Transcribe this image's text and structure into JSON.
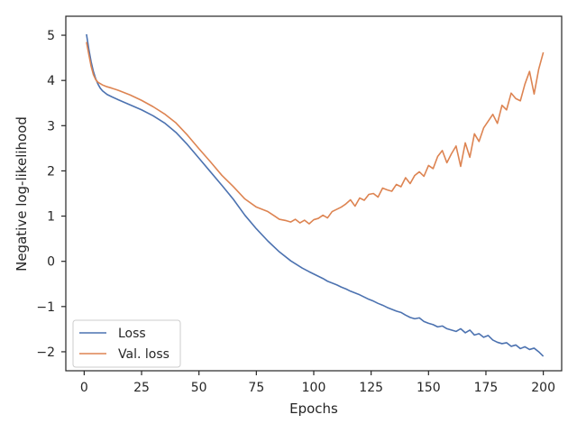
{
  "chart_data": {
    "type": "line",
    "xlabel": "Epochs",
    "ylabel": "Negative log-likelihood",
    "xlim": [
      -8,
      208
    ],
    "ylim": [
      -2.42,
      5.42
    ],
    "xticks": [
      0,
      25,
      50,
      75,
      100,
      125,
      150,
      175,
      200
    ],
    "yticks": [
      -2,
      -1,
      0,
      1,
      2,
      3,
      4,
      5
    ],
    "grid": false,
    "legend_position": "bottom-left",
    "series": [
      {
        "name": "Loss",
        "color": "#4c72b0",
        "x": [
          1,
          2,
          3,
          4,
          5,
          6,
          7,
          8,
          9,
          10,
          12,
          15,
          20,
          25,
          30,
          35,
          40,
          45,
          50,
          55,
          60,
          65,
          70,
          75,
          80,
          85,
          90,
          95,
          98,
          100,
          102,
          104,
          106,
          108,
          110,
          112,
          114,
          116,
          118,
          120,
          122,
          124,
          126,
          128,
          130,
          132,
          134,
          136,
          138,
          140,
          142,
          144,
          146,
          148,
          150,
          152,
          154,
          156,
          158,
          160,
          162,
          164,
          166,
          168,
          170,
          172,
          174,
          176,
          178,
          180,
          182,
          184,
          186,
          188,
          190,
          192,
          194,
          196,
          198,
          200
        ],
        "y": [
          5.02,
          4.7,
          4.42,
          4.2,
          4.04,
          3.92,
          3.83,
          3.77,
          3.73,
          3.69,
          3.64,
          3.57,
          3.46,
          3.35,
          3.22,
          3.06,
          2.85,
          2.58,
          2.28,
          1.98,
          1.68,
          1.37,
          1.02,
          0.72,
          0.45,
          0.21,
          0.01,
          -0.15,
          -0.23,
          -0.28,
          -0.33,
          -0.38,
          -0.44,
          -0.48,
          -0.52,
          -0.57,
          -0.61,
          -0.66,
          -0.7,
          -0.74,
          -0.79,
          -0.84,
          -0.88,
          -0.93,
          -0.97,
          -1.02,
          -1.06,
          -1.1,
          -1.13,
          -1.19,
          -1.24,
          -1.27,
          -1.25,
          -1.33,
          -1.37,
          -1.4,
          -1.45,
          -1.43,
          -1.49,
          -1.52,
          -1.55,
          -1.49,
          -1.58,
          -1.52,
          -1.63,
          -1.6,
          -1.68,
          -1.64,
          -1.74,
          -1.79,
          -1.82,
          -1.8,
          -1.88,
          -1.85,
          -1.93,
          -1.89,
          -1.95,
          -1.92,
          -2.0,
          -2.1
        ]
      },
      {
        "name": "Val. loss",
        "color": "#dd8452",
        "x": [
          1,
          2,
          3,
          4,
          5,
          6,
          7,
          8,
          9,
          10,
          12,
          15,
          20,
          25,
          30,
          35,
          40,
          45,
          50,
          55,
          60,
          65,
          70,
          75,
          80,
          83,
          85,
          88,
          90,
          92,
          94,
          96,
          98,
          100,
          102,
          104,
          106,
          108,
          110,
          112,
          114,
          116,
          118,
          120,
          122,
          124,
          126,
          128,
          130,
          132,
          134,
          136,
          138,
          140,
          142,
          144,
          146,
          148,
          150,
          152,
          154,
          156,
          158,
          160,
          162,
          164,
          166,
          168,
          170,
          172,
          174,
          176,
          178,
          180,
          182,
          184,
          186,
          188,
          190,
          192,
          194,
          196,
          198,
          200
        ],
        "y": [
          4.85,
          4.58,
          4.32,
          4.13,
          4.02,
          3.96,
          3.93,
          3.9,
          3.88,
          3.86,
          3.83,
          3.78,
          3.68,
          3.56,
          3.42,
          3.26,
          3.06,
          2.79,
          2.49,
          2.2,
          1.9,
          1.65,
          1.38,
          1.2,
          1.1,
          1.0,
          0.93,
          0.9,
          0.87,
          0.93,
          0.85,
          0.91,
          0.83,
          0.92,
          0.95,
          1.02,
          0.96,
          1.1,
          1.15,
          1.2,
          1.27,
          1.36,
          1.22,
          1.4,
          1.35,
          1.48,
          1.5,
          1.42,
          1.62,
          1.58,
          1.55,
          1.7,
          1.65,
          1.85,
          1.72,
          1.9,
          1.98,
          1.88,
          2.12,
          2.05,
          2.32,
          2.45,
          2.18,
          2.38,
          2.55,
          2.1,
          2.62,
          2.3,
          2.82,
          2.65,
          2.95,
          3.1,
          3.25,
          3.05,
          3.45,
          3.35,
          3.72,
          3.6,
          3.55,
          3.92,
          4.2,
          3.7,
          4.25,
          4.62
        ]
      }
    ]
  }
}
